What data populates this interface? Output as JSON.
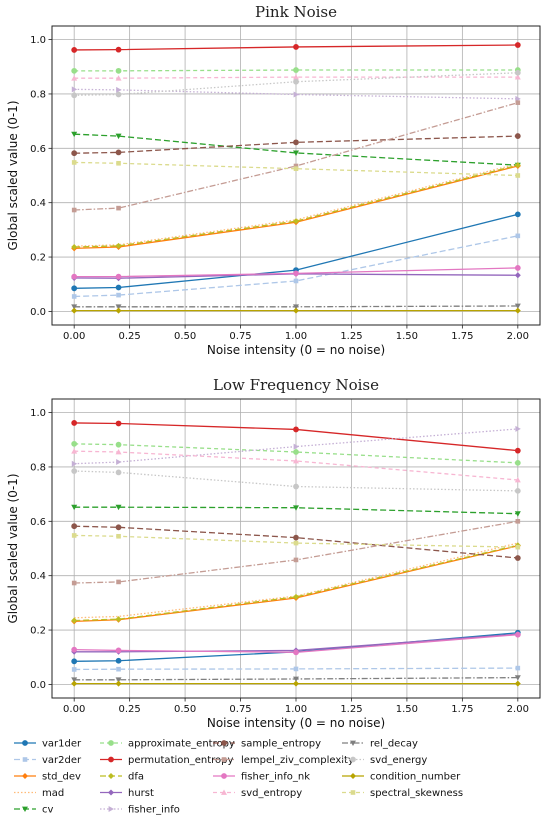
{
  "chart_data": [
    {
      "type": "line",
      "title": "Pink Noise",
      "xlabel": "Noise intensity (0 = no noise)",
      "ylabel": "Global scaled value (0-1)",
      "xlim": [
        -0.1,
        2.1
      ],
      "ylim": [
        -0.05,
        1.05
      ],
      "xticks": [
        "0.00",
        "0.25",
        "0.50",
        "0.75",
        "1.00",
        "1.25",
        "1.50",
        "1.75",
        "2.00"
      ],
      "yticks": [
        "0.0",
        "0.2",
        "0.4",
        "0.6",
        "0.8",
        "1.0"
      ],
      "grid": true,
      "x": [
        0,
        0.2,
        1.0,
        2.0
      ],
      "series": [
        {
          "name": "var1der",
          "values": [
            0.085,
            0.088,
            0.152,
            0.357
          ]
        },
        {
          "name": "var2der",
          "values": [
            0.055,
            0.06,
            0.112,
            0.278
          ]
        },
        {
          "name": "std_dev",
          "values": [
            0.232,
            0.237,
            0.328,
            0.535
          ]
        },
        {
          "name": "mad",
          "values": [
            0.24,
            0.245,
            0.337,
            0.543
          ]
        },
        {
          "name": "cv",
          "values": [
            0.652,
            0.645,
            0.583,
            0.538
          ]
        },
        {
          "name": "approximate_entropy",
          "values": [
            0.885,
            0.885,
            0.888,
            0.888
          ]
        },
        {
          "name": "permutation_entropy",
          "values": [
            0.962,
            0.963,
            0.973,
            0.98
          ]
        },
        {
          "name": "dfa",
          "values": [
            0.237,
            0.241,
            0.332,
            0.538
          ]
        },
        {
          "name": "hurst",
          "values": [
            0.123,
            0.122,
            0.138,
            0.133
          ]
        },
        {
          "name": "fisher_info",
          "values": [
            0.817,
            0.815,
            0.798,
            0.782
          ]
        },
        {
          "name": "sample_entropy",
          "values": [
            0.582,
            0.585,
            0.622,
            0.645
          ]
        },
        {
          "name": "lempel_ziv_complexity",
          "values": [
            0.373,
            0.38,
            0.535,
            0.768
          ]
        },
        {
          "name": "fisher_info_nk",
          "values": [
            0.128,
            0.128,
            0.14,
            0.16
          ]
        },
        {
          "name": "svd_entropy",
          "values": [
            0.858,
            0.858,
            0.862,
            0.862
          ]
        },
        {
          "name": "rel_decay",
          "values": [
            0.017,
            0.017,
            0.017,
            0.02
          ]
        },
        {
          "name": "svd_energy",
          "values": [
            0.795,
            0.798,
            0.845,
            0.878
          ]
        },
        {
          "name": "condition_number",
          "values": [
            0.003,
            0.003,
            0.003,
            0.003
          ]
        },
        {
          "name": "spectral_skewness",
          "values": [
            0.548,
            0.545,
            0.525,
            0.5
          ]
        }
      ]
    },
    {
      "type": "line",
      "title": "Low Frequency Noise",
      "xlabel": "Noise intensity (0 = no noise)",
      "ylabel": "Global scaled value (0-1)",
      "xlim": [
        -0.1,
        2.1
      ],
      "ylim": [
        -0.05,
        1.05
      ],
      "xticks": [
        "0.00",
        "0.25",
        "0.50",
        "0.75",
        "1.00",
        "1.25",
        "1.50",
        "1.75",
        "2.00"
      ],
      "yticks": [
        "0.0",
        "0.2",
        "0.4",
        "0.6",
        "0.8",
        "1.0"
      ],
      "grid": true,
      "x": [
        0,
        0.2,
        1.0,
        2.0
      ],
      "series": [
        {
          "name": "var1der",
          "values": [
            0.085,
            0.087,
            0.12,
            0.19
          ]
        },
        {
          "name": "var2der",
          "values": [
            0.055,
            0.056,
            0.057,
            0.06
          ]
        },
        {
          "name": "std_dev",
          "values": [
            0.232,
            0.238,
            0.318,
            0.51
          ]
        },
        {
          "name": "mad",
          "values": [
            0.245,
            0.25,
            0.325,
            0.52
          ]
        },
        {
          "name": "cv",
          "values": [
            0.652,
            0.652,
            0.65,
            0.628
          ]
        },
        {
          "name": "approximate_entropy",
          "values": [
            0.885,
            0.882,
            0.855,
            0.815
          ]
        },
        {
          "name": "permutation_entropy",
          "values": [
            0.962,
            0.96,
            0.938,
            0.86
          ]
        },
        {
          "name": "dfa",
          "values": [
            0.235,
            0.24,
            0.322,
            0.512
          ]
        },
        {
          "name": "hurst",
          "values": [
            0.12,
            0.12,
            0.125,
            0.185
          ]
        },
        {
          "name": "fisher_info",
          "values": [
            0.812,
            0.818,
            0.875,
            0.94
          ]
        },
        {
          "name": "sample_entropy",
          "values": [
            0.582,
            0.578,
            0.54,
            0.465
          ]
        },
        {
          "name": "lempel_ziv_complexity",
          "values": [
            0.373,
            0.377,
            0.458,
            0.6
          ]
        },
        {
          "name": "fisher_info_nk",
          "values": [
            0.128,
            0.125,
            0.118,
            0.183
          ]
        },
        {
          "name": "svd_entropy",
          "values": [
            0.858,
            0.855,
            0.822,
            0.752
          ]
        },
        {
          "name": "rel_decay",
          "values": [
            0.017,
            0.017,
            0.02,
            0.025
          ]
        },
        {
          "name": "svd_energy",
          "values": [
            0.785,
            0.78,
            0.728,
            0.712
          ]
        },
        {
          "name": "condition_number",
          "values": [
            0.003,
            0.003,
            0.003,
            0.003
          ]
        },
        {
          "name": "spectral_skewness",
          "values": [
            0.548,
            0.545,
            0.52,
            0.505
          ]
        }
      ]
    }
  ],
  "legend": {
    "placement": "bottom",
    "columns": [
      [
        "var1der",
        "var2der",
        "std_dev",
        "mad",
        "cv"
      ],
      [
        "approximate_entropy",
        "permutation_entropy",
        "dfa",
        "hurst",
        "fisher_info"
      ],
      [
        "sample_entropy",
        "lempel_ziv_complexity",
        "fisher_info_nk",
        "svd_entropy"
      ],
      [
        "rel_decay",
        "svd_energy",
        "condition_number",
        "spectral_skewness"
      ]
    ]
  },
  "styles": {
    "var1der": {
      "color": "#1f77b4",
      "dash": "",
      "marker": "circle"
    },
    "var2der": {
      "color": "#aec7e8",
      "dash": "6,3",
      "marker": "square"
    },
    "std_dev": {
      "color": "#ff7f0e",
      "dash": "",
      "marker": "diamond"
    },
    "mad": {
      "color": "#ffbb78",
      "dash": "1.5,2",
      "marker": "none"
    },
    "cv": {
      "color": "#2ca02c",
      "dash": "6,3",
      "marker": "triangle-down"
    },
    "approximate_entropy": {
      "color": "#98df8a",
      "dash": "4,3",
      "marker": "circle"
    },
    "permutation_entropy": {
      "color": "#d62728",
      "dash": "",
      "marker": "circle"
    },
    "dfa": {
      "color": "#bcbd22",
      "dash": "6,3",
      "marker": "diamond"
    },
    "hurst": {
      "color": "#9467bd",
      "dash": "",
      "marker": "diamond"
    },
    "fisher_info": {
      "color": "#c5b0d5",
      "dash": "1.5,2",
      "marker": "triangle-right"
    },
    "sample_entropy": {
      "color": "#8c564b",
      "dash": "6,3",
      "marker": "circle"
    },
    "lempel_ziv_complexity": {
      "color": "#c49c94",
      "dash": "6,2,1.5,2",
      "marker": "square"
    },
    "fisher_info_nk": {
      "color": "#e377c2",
      "dash": "",
      "marker": "circle"
    },
    "svd_entropy": {
      "color": "#f7b6d2",
      "dash": "4,3",
      "marker": "triangle-up"
    },
    "rel_decay": {
      "color": "#7f7f7f",
      "dash": "6,2,1.5,2",
      "marker": "triangle-down"
    },
    "svd_energy": {
      "color": "#c7c7c7",
      "dash": "1.5,2",
      "marker": "circle"
    },
    "condition_number": {
      "color": "#b8a400",
      "dash": "",
      "marker": "diamond"
    },
    "spectral_skewness": {
      "color": "#dbdb8d",
      "dash": "4,3",
      "marker": "square"
    }
  }
}
